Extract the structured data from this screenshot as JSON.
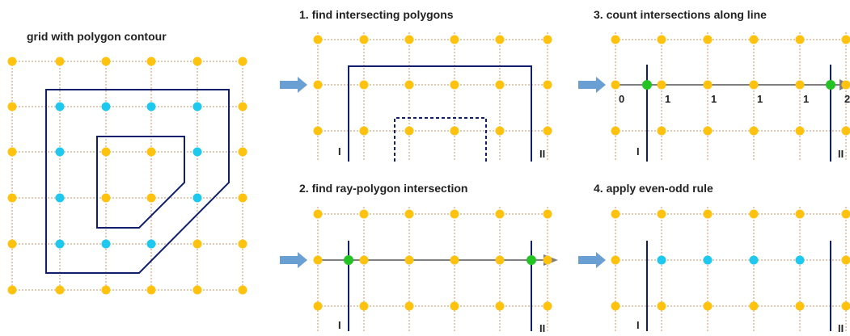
{
  "titles": {
    "main": "grid with polygon contour",
    "step1": "1. find intersecting polygons",
    "step2": "2. find ray-polygon intersection",
    "step3": "3. count intersections along line",
    "step4": "4. apply even-odd rule"
  },
  "labels": {
    "poly_outer": "I",
    "poly_inner": "II"
  },
  "crossing_counts": [
    "0",
    "1",
    "1",
    "1",
    "1",
    "2"
  ],
  "colors": {
    "grid_line": "#c8956a",
    "grid_node": "#ffc20e",
    "inside_node": "#1ec8ee",
    "intersection_node": "#22c322",
    "polygon": "#0f1f6b",
    "arrow": "#6a9fd4",
    "ray": "#7f7f7f"
  }
}
